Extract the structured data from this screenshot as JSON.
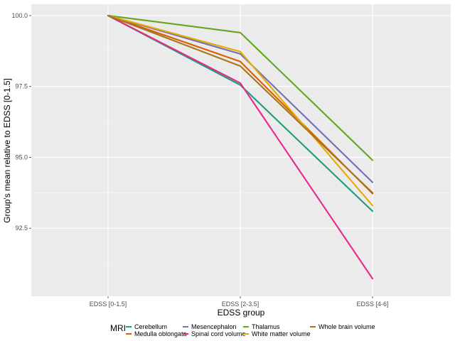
{
  "chart_data": {
    "type": "line",
    "xlabel": "EDSS group",
    "ylabel": "Group's mean relative to EDSS [0-1.5]",
    "categories": [
      "EDSS [0-1.5]",
      "EDSS [2-3.5]",
      "EDSS [4-6]"
    ],
    "ylim": [
      90.1,
      100.4
    ],
    "yticks": [
      92.5,
      95.0,
      97.5,
      100.0
    ],
    "ytick_labels": [
      "92.5",
      "95.0",
      "97.5",
      "100.0"
    ],
    "grid": true,
    "legend": {
      "title": "MRI",
      "placement": "bottom"
    },
    "series": [
      {
        "name": "Cerebellum",
        "color": "#1b9e77",
        "values": [
          100.0,
          97.55,
          93.1
        ]
      },
      {
        "name": "Medulla oblongata",
        "color": "#d95f02",
        "values": [
          100.0,
          98.38,
          93.72
        ]
      },
      {
        "name": "Mesencephalon",
        "color": "#7570b3",
        "values": [
          100.0,
          98.65,
          94.12
        ]
      },
      {
        "name": "Spinal cord volume",
        "color": "#e7298a",
        "values": [
          100.0,
          97.62,
          90.72
        ]
      },
      {
        "name": "Thalamus",
        "color": "#66a61e",
        "values": [
          100.0,
          99.4,
          94.9
        ]
      },
      {
        "name": "White matter volume",
        "color": "#e6ab02",
        "values": [
          100.0,
          98.73,
          93.3
        ]
      },
      {
        "name": "Whole brain volume",
        "color": "#a6761d",
        "values": [
          100.0,
          98.22,
          93.75
        ]
      }
    ]
  }
}
